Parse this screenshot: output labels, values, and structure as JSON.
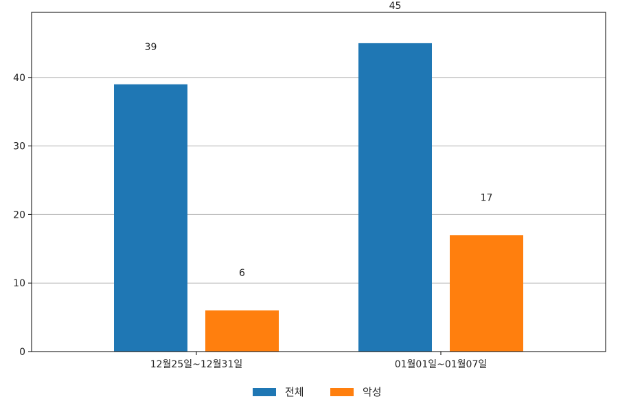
{
  "chart_data": {
    "type": "bar",
    "categories": [
      "12월25일~12월31일",
      "01월01일~01월07일"
    ],
    "series": [
      {
        "name": "전체",
        "values": [
          39,
          45
        ],
        "color": "#1f77b4"
      },
      {
        "name": "악성",
        "values": [
          6,
          17
        ],
        "color": "#ff7f0e"
      }
    ],
    "ylim": [
      0,
      49.5
    ],
    "yticks": [
      0,
      10,
      20,
      30,
      40
    ],
    "grid": "horizontal",
    "legend": "bottom-center",
    "title": "",
    "xlabel": "",
    "ylabel": ""
  }
}
